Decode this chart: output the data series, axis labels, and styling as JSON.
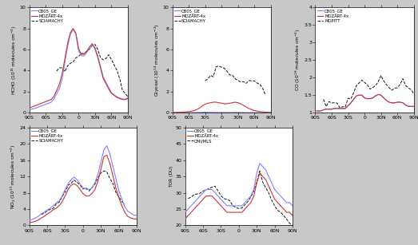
{
  "x_ticks": [
    -90,
    -60,
    -30,
    0,
    30,
    60,
    90
  ],
  "x_tick_labels": [
    "90S",
    "60S",
    "30S",
    "0",
    "30N",
    "60N",
    "90N"
  ],
  "lat": [
    -90,
    -85,
    -80,
    -75,
    -70,
    -65,
    -60,
    -55,
    -50,
    -45,
    -40,
    -35,
    -30,
    -25,
    -20,
    -15,
    -10,
    -5,
    0,
    5,
    10,
    15,
    20,
    25,
    30,
    35,
    40,
    45,
    50,
    55,
    60,
    65,
    70,
    75,
    80,
    85,
    90
  ],
  "hcho_cb05": [
    0.3,
    0.35,
    0.4,
    0.5,
    0.6,
    0.7,
    0.8,
    0.9,
    1.0,
    1.3,
    1.8,
    2.3,
    3.2,
    4.8,
    6.3,
    7.4,
    7.9,
    7.5,
    5.9,
    5.4,
    5.4,
    5.7,
    6.1,
    6.4,
    6.2,
    5.4,
    4.4,
    3.4,
    2.9,
    2.4,
    1.9,
    1.7,
    1.5,
    1.4,
    1.3,
    1.3,
    1.4
  ],
  "hcho_mozart": [
    0.45,
    0.55,
    0.65,
    0.75,
    0.85,
    0.95,
    1.05,
    1.15,
    1.25,
    1.55,
    2.1,
    2.7,
    3.7,
    5.1,
    6.6,
    7.6,
    8.0,
    7.55,
    6.1,
    5.55,
    5.55,
    5.85,
    6.25,
    6.55,
    6.05,
    5.25,
    4.25,
    3.25,
    2.75,
    2.25,
    1.85,
    1.65,
    1.45,
    1.35,
    1.25,
    1.25,
    1.35
  ],
  "hcho_sciamachy": [
    null,
    null,
    null,
    null,
    null,
    null,
    null,
    null,
    null,
    null,
    3.9,
    4.1,
    4.2,
    4.1,
    4.35,
    4.6,
    4.9,
    5.1,
    5.3,
    5.6,
    5.6,
    5.8,
    6.1,
    6.4,
    6.55,
    5.9,
    5.25,
    5.05,
    5.25,
    5.55,
    5.05,
    4.55,
    3.85,
    3.05,
    2.55,
    2.05,
    1.55
  ],
  "hcho_sciamachy_noise": [
    0.0,
    0.0,
    0.0,
    0.0,
    0.0,
    0.0,
    0.0,
    0.0,
    0.0,
    0.0,
    0.15,
    0.2,
    0.18,
    0.15,
    0.12,
    0.2,
    0.15,
    0.18,
    0.1,
    0.12,
    0.1,
    0.08,
    0.1,
    0.12,
    0.15,
    0.18,
    0.2,
    0.15,
    0.12,
    0.18,
    0.15,
    0.12,
    0.15,
    0.2,
    0.15,
    0.12,
    0.1
  ],
  "glyoxal_cb05": [
    0.01,
    0.01,
    0.01,
    0.01,
    0.01,
    0.01,
    0.01,
    0.01,
    0.02,
    0.02,
    0.03,
    0.04,
    0.05,
    0.04,
    0.03,
    0.03,
    0.02,
    0.02,
    0.02,
    0.02,
    0.02,
    0.02,
    0.02,
    0.03,
    0.03,
    0.02,
    0.02,
    0.01,
    0.01,
    0.01,
    0.01,
    0.01,
    0.01,
    0.01,
    0.01,
    0.01,
    0.01
  ],
  "glyoxal_mozart": [
    0.02,
    0.02,
    0.03,
    0.04,
    0.06,
    0.08,
    0.1,
    0.15,
    0.2,
    0.3,
    0.45,
    0.65,
    0.8,
    0.9,
    0.95,
    1.0,
    1.0,
    0.95,
    0.9,
    0.85,
    0.85,
    0.9,
    0.95,
    1.0,
    0.95,
    0.85,
    0.7,
    0.55,
    0.4,
    0.3,
    0.2,
    0.15,
    0.1,
    0.08,
    0.05,
    0.03,
    0.02
  ],
  "glyoxal_sciamachy": [
    null,
    null,
    null,
    null,
    null,
    null,
    null,
    null,
    null,
    null,
    null,
    null,
    3.0,
    3.3,
    3.6,
    3.9,
    4.1,
    4.3,
    4.35,
    4.15,
    3.9,
    3.65,
    3.45,
    3.25,
    3.1,
    3.0,
    2.9,
    2.8,
    3.0,
    3.1,
    3.0,
    2.9,
    2.6,
    2.3,
    1.6,
    null,
    null
  ],
  "glyoxal_sciamachy_noise": [
    0.0,
    0.0,
    0.0,
    0.0,
    0.0,
    0.0,
    0.0,
    0.0,
    0.0,
    0.0,
    0.0,
    0.0,
    0.15,
    0.2,
    0.15,
    0.2,
    0.15,
    0.12,
    0.1,
    0.1,
    0.1,
    0.1,
    0.1,
    0.12,
    0.12,
    0.1,
    0.1,
    0.1,
    0.1,
    0.12,
    0.1,
    0.1,
    0.12,
    0.15,
    0.2,
    0.0,
    0.0
  ],
  "co_cb05": [
    1.05,
    1.05,
    1.05,
    1.08,
    1.1,
    1.1,
    1.1,
    1.12,
    1.12,
    1.12,
    1.12,
    1.12,
    1.2,
    1.28,
    1.38,
    1.48,
    1.5,
    1.5,
    1.42,
    1.4,
    1.4,
    1.42,
    1.48,
    1.52,
    1.5,
    1.42,
    1.35,
    1.3,
    1.28,
    1.28,
    1.3,
    1.3,
    1.28,
    1.22,
    1.18,
    1.18,
    1.18
  ],
  "co_mozart": [
    1.05,
    1.05,
    1.05,
    1.08,
    1.1,
    1.1,
    1.1,
    1.12,
    1.12,
    1.12,
    1.12,
    1.12,
    1.2,
    1.28,
    1.38,
    1.48,
    1.5,
    1.5,
    1.42,
    1.4,
    1.4,
    1.42,
    1.48,
    1.52,
    1.5,
    1.42,
    1.35,
    1.3,
    1.28,
    1.28,
    1.3,
    1.3,
    1.28,
    1.22,
    1.18,
    1.18,
    1.18
  ],
  "co_mopitt": [
    null,
    null,
    null,
    1.28,
    1.28,
    1.3,
    1.3,
    1.3,
    1.28,
    1.22,
    1.18,
    1.2,
    1.28,
    1.38,
    1.58,
    1.78,
    1.88,
    1.98,
    1.88,
    1.78,
    1.68,
    1.68,
    1.78,
    1.88,
    1.98,
    1.88,
    1.82,
    1.72,
    1.62,
    1.62,
    1.72,
    1.82,
    1.92,
    1.82,
    1.72,
    1.62,
    1.52
  ],
  "co_mopitt_noise": [
    0.0,
    0.0,
    0.0,
    0.05,
    0.04,
    0.04,
    0.04,
    0.04,
    0.04,
    0.04,
    0.04,
    0.04,
    0.04,
    0.05,
    0.05,
    0.05,
    0.05,
    0.05,
    0.05,
    0.05,
    0.04,
    0.04,
    0.05,
    0.05,
    0.05,
    0.05,
    0.04,
    0.04,
    0.04,
    0.04,
    0.04,
    0.05,
    0.05,
    0.05,
    0.04,
    0.04,
    0.04
  ],
  "no2_cb05": [
    1.2,
    1.5,
    1.8,
    2.2,
    2.8,
    3.2,
    3.8,
    4.2,
    4.8,
    5.5,
    6.0,
    7.2,
    8.8,
    10.2,
    11.2,
    11.8,
    11.2,
    10.2,
    9.2,
    8.8,
    8.8,
    9.2,
    10.5,
    12.5,
    15.5,
    18.5,
    19.5,
    17.5,
    14.5,
    11.5,
    8.5,
    6.5,
    4.5,
    3.5,
    3.0,
    2.5,
    2.5
  ],
  "no2_mozart": [
    0.6,
    0.8,
    1.0,
    1.3,
    1.8,
    2.2,
    2.8,
    3.2,
    3.8,
    4.2,
    4.8,
    5.8,
    7.2,
    8.8,
    9.8,
    10.2,
    9.8,
    8.8,
    7.8,
    7.2,
    7.2,
    7.8,
    8.8,
    10.8,
    13.8,
    16.8,
    17.2,
    15.2,
    12.2,
    9.2,
    6.8,
    4.8,
    3.2,
    2.2,
    1.8,
    1.6,
    1.6
  ],
  "no2_sciamachy": [
    null,
    null,
    null,
    null,
    2.8,
    3.0,
    3.2,
    3.8,
    4.5,
    5.2,
    5.8,
    7.0,
    8.5,
    9.8,
    10.2,
    10.8,
    10.5,
    9.8,
    9.2,
    8.8,
    8.8,
    9.0,
    10.2,
    11.8,
    13.0,
    13.5,
    13.0,
    11.5,
    10.0,
    8.5,
    7.0,
    6.0,
    5.0,
    null,
    null,
    null,
    null
  ],
  "no2_sciamachy_noise": [
    0.0,
    0.0,
    0.0,
    0.0,
    0.2,
    0.2,
    0.2,
    0.2,
    0.2,
    0.2,
    0.2,
    0.2,
    0.2,
    0.2,
    0.2,
    0.2,
    0.2,
    0.2,
    0.2,
    0.2,
    0.2,
    0.2,
    0.2,
    0.2,
    0.2,
    0.2,
    0.2,
    0.2,
    0.2,
    0.2,
    0.2,
    0.2,
    0.2,
    0.0,
    0.0,
    0.0,
    0.0
  ],
  "tor_cb05": [
    24,
    25,
    26,
    27,
    28,
    29,
    30,
    31,
    31,
    31,
    30,
    29,
    28,
    27,
    26,
    26,
    26,
    26,
    26,
    26,
    27,
    28,
    29,
    31,
    36,
    39,
    38,
    37,
    35,
    33,
    31,
    30,
    29,
    28,
    27,
    27,
    26
  ],
  "tor_mozart": [
    22,
    23,
    24,
    25,
    26,
    27,
    28,
    29,
    29,
    29,
    28,
    27,
    26,
    25,
    24,
    24,
    24,
    24,
    24,
    24,
    25,
    26,
    27,
    29,
    33,
    36,
    35,
    34,
    32,
    30,
    28,
    27,
    26,
    25,
    24,
    24,
    23
  ],
  "tor_omimls": [
    null,
    28.5,
    29,
    29.5,
    29.5,
    29.5,
    30.5,
    31,
    31.5,
    31.5,
    31.5,
    30.5,
    29.5,
    28.5,
    27.5,
    27.5,
    26.5,
    25.5,
    25.5,
    25.5,
    26.5,
    27.5,
    28.5,
    30.5,
    33.5,
    36.5,
    33,
    32,
    30,
    28,
    26,
    25,
    24,
    23,
    22,
    21,
    20
  ],
  "tor_omimls_noise": [
    0.0,
    0.3,
    0.3,
    0.3,
    0.3,
    0.3,
    0.3,
    0.3,
    0.3,
    0.3,
    0.3,
    0.3,
    0.3,
    0.3,
    0.3,
    0.3,
    0.3,
    0.3,
    0.3,
    0.3,
    0.3,
    0.3,
    0.3,
    0.3,
    0.3,
    0.3,
    0.3,
    0.3,
    0.3,
    0.3,
    0.3,
    0.3,
    0.3,
    0.3,
    0.3,
    0.3,
    0.3
  ],
  "colors": {
    "cb05": "#8080ff",
    "mozart": "#cc3333",
    "obs": "#111111"
  },
  "panels": [
    {
      "ylabel": "HCHO (10$^{15}$ molecules cm$^{-2}$)",
      "ylim": [
        0,
        10
      ],
      "yticks": [
        0,
        2,
        4,
        6,
        8,
        10
      ],
      "legend": [
        "CB05_GE",
        "MOZART-4x",
        "SCIAMACHY"
      ]
    },
    {
      "ylabel": "Glyoxal (10$^{14}$ molecules cm$^{-2}$)",
      "ylim": [
        0,
        10
      ],
      "yticks": [
        0,
        2,
        4,
        6,
        8,
        10
      ],
      "legend": [
        "CB05_GE",
        "MOZART-4x",
        "SCIAMACHY"
      ]
    },
    {
      "ylabel": "CO (10$^{18}$ molecules cm$^{-2}$)",
      "ylim": [
        1.0,
        4.0
      ],
      "yticks": [
        1.0,
        1.5,
        2.0,
        2.5,
        3.0,
        3.5,
        4.0
      ],
      "legend": [
        "CB05_GE",
        "MOZART-4x",
        "MOPITT"
      ]
    },
    {
      "ylabel": "NO$_2$ (10$^{15}$ molecules cm$^{-2}$)",
      "ylim": [
        0,
        24
      ],
      "yticks": [
        0,
        4,
        8,
        12,
        16,
        20,
        24
      ],
      "legend": [
        "CB05_GE",
        "MOZART-4x",
        "SCIAMACHY"
      ]
    },
    {
      "ylabel": "TOR (DU)",
      "ylim": [
        20,
        50
      ],
      "yticks": [
        20,
        25,
        30,
        35,
        40,
        45,
        50
      ],
      "legend": [
        "CB05_GE",
        "MOZART-4x",
        "OMI/MLS"
      ]
    }
  ],
  "fig_background": "#c8c8c8"
}
